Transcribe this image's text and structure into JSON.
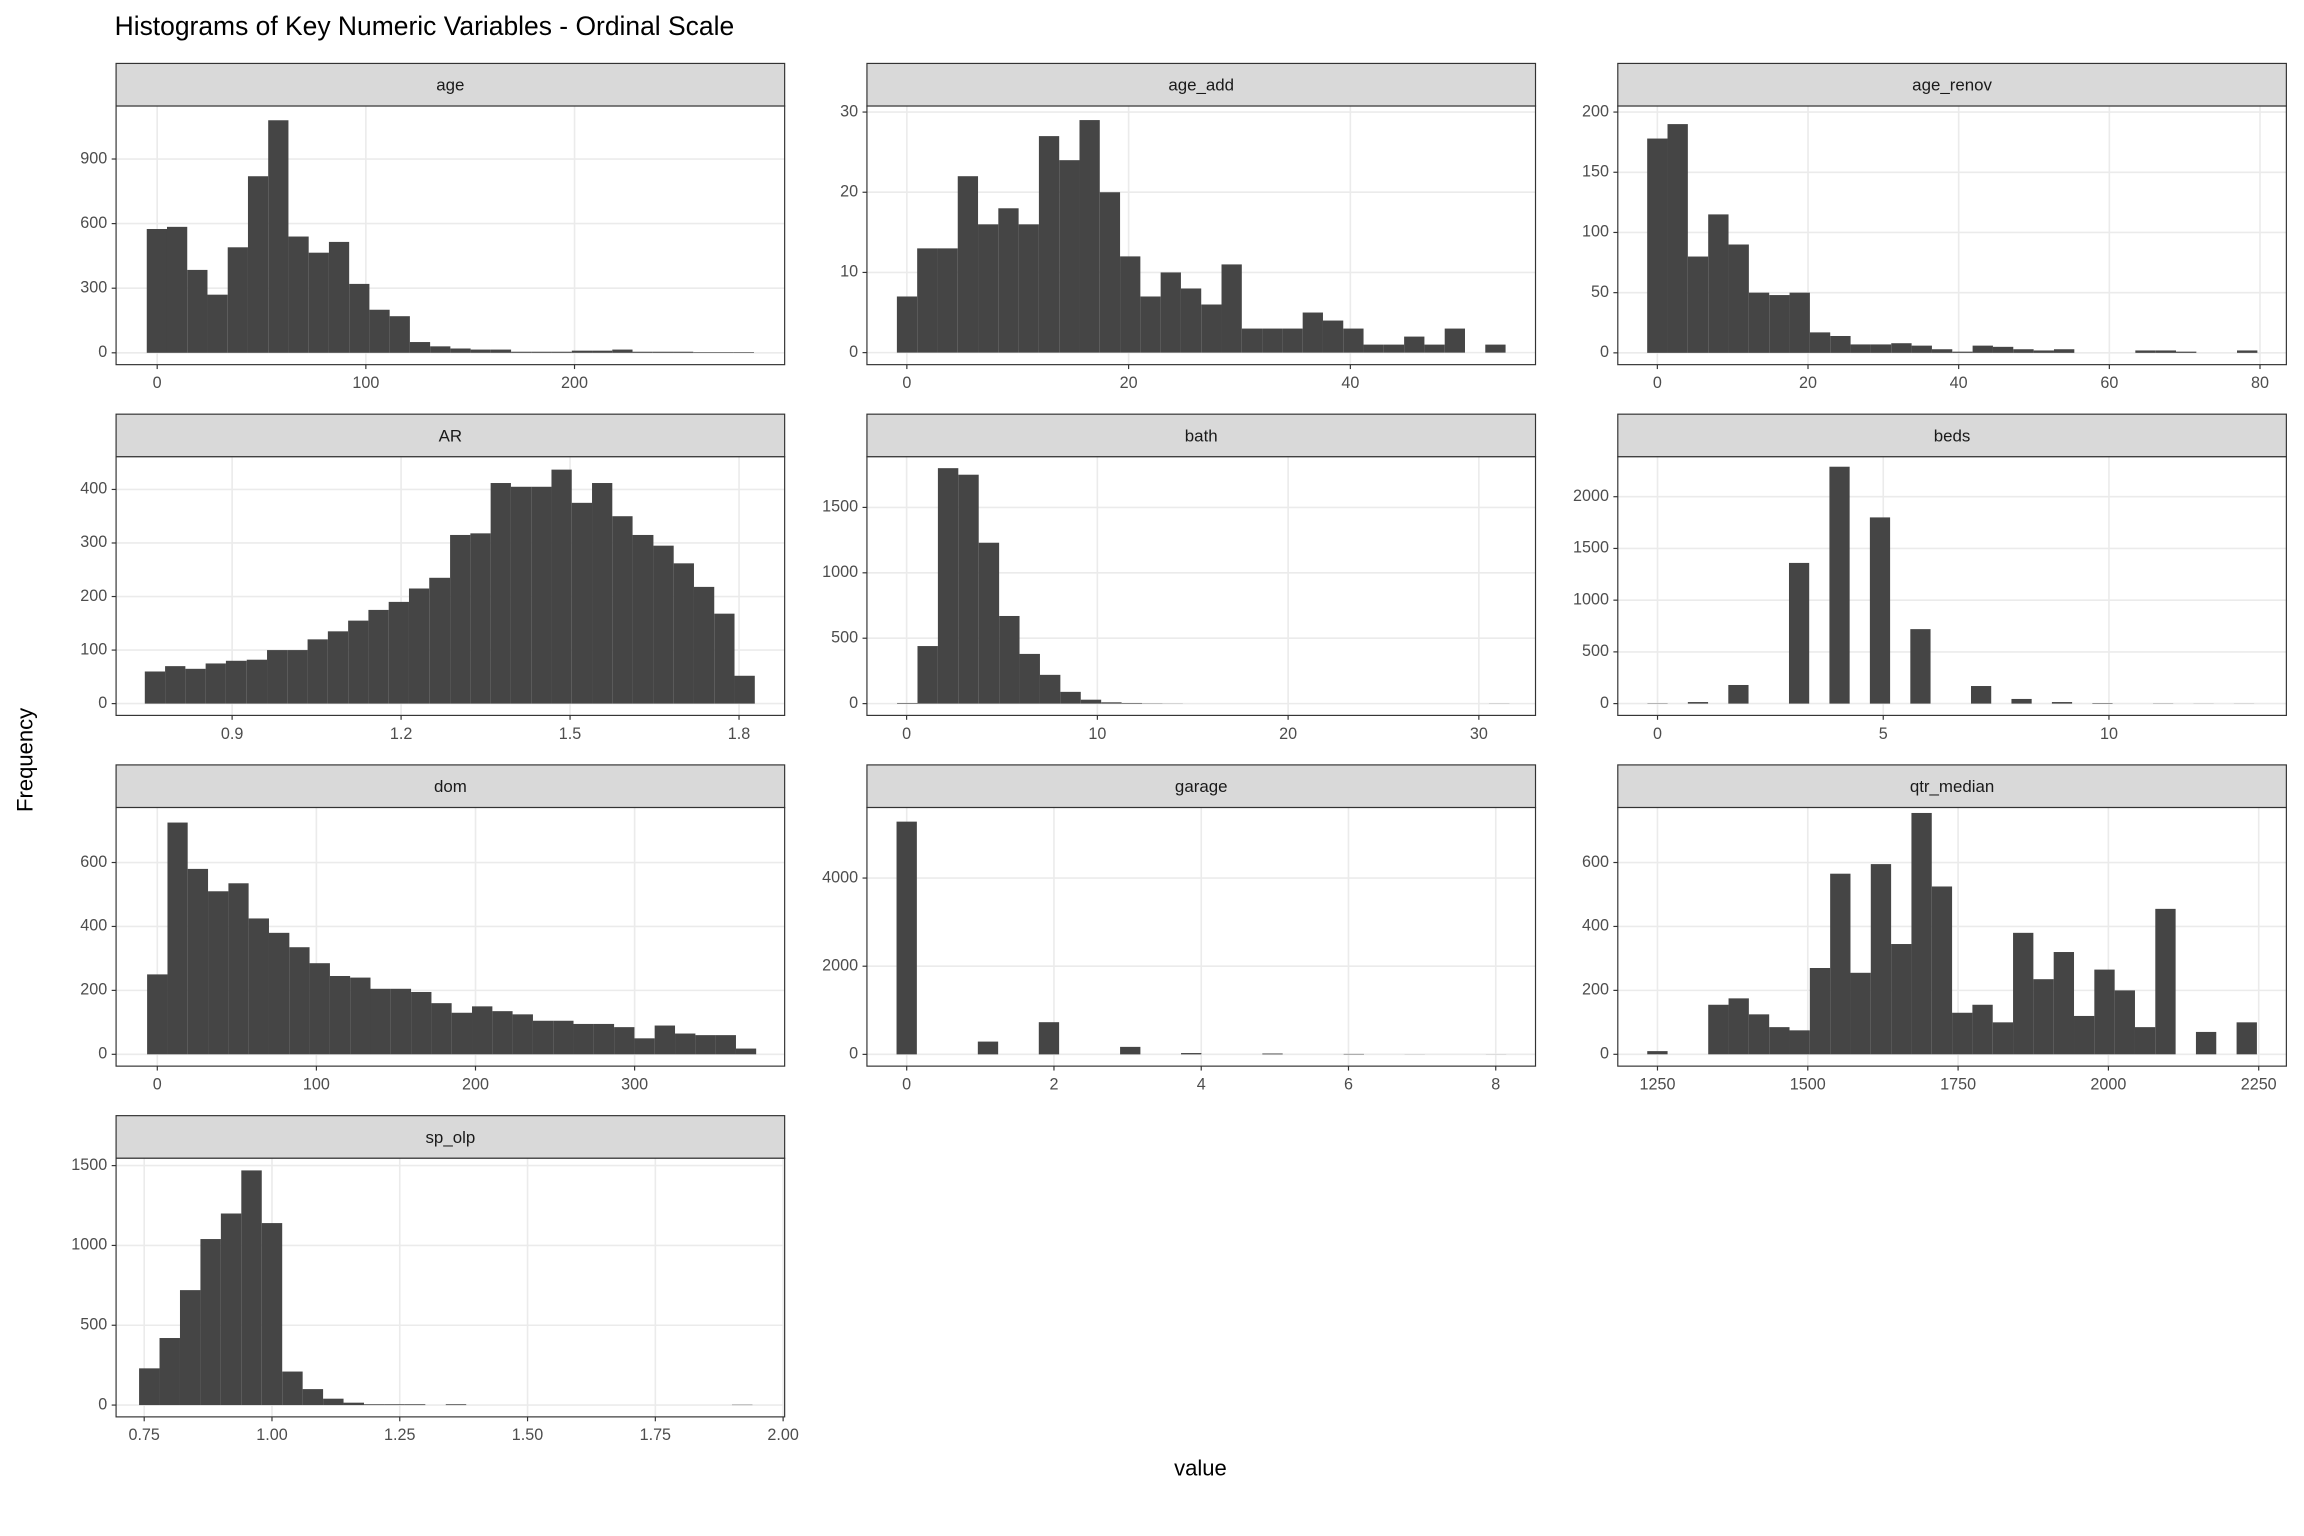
{
  "chart_data": {
    "type": "histogram",
    "title": "Histograms of Key Numeric Variables - Ordinal Scale",
    "x_label": "value",
    "y_label": "Frequency",
    "color": "#454545",
    "grid": true,
    "panels": [
      {
        "name": "age",
        "bins": [
          -5,
          4.7,
          14.4,
          24.1,
          33.8,
          43.5,
          53.2,
          62.9,
          72.6,
          82.3,
          92,
          101.7,
          111.4,
          121.1,
          130.8,
          140.5,
          150.2,
          159.9,
          169.6,
          179.3,
          189,
          198.7,
          208.4,
          218.1,
          227.8,
          237.5,
          247.2,
          256.9,
          266.6,
          276.3,
          286
        ],
        "counts": [
          575,
          585,
          385,
          270,
          490,
          820,
          1080,
          540,
          465,
          515,
          320,
          200,
          170,
          50,
          30,
          20,
          15,
          15,
          5,
          5,
          5,
          10,
          10,
          15,
          5,
          5,
          5,
          3,
          3,
          3
        ],
        "xlim": [
          -19.7,
          300.7
        ],
        "ylim": [
          -55,
          1146
        ],
        "xticks": [
          0,
          100,
          200
        ],
        "yticks": [
          0,
          300,
          600,
          900
        ]
      },
      {
        "name": "age_add",
        "bins": [
          -0.9,
          0.93,
          2.76,
          4.59,
          6.42,
          8.25,
          10.08,
          11.91,
          13.74,
          15.57,
          17.4,
          19.23,
          21.06,
          22.89,
          24.72,
          26.55,
          28.38,
          30.21,
          32.04,
          33.87,
          35.7,
          37.53,
          39.36,
          41.19,
          43.02,
          44.85,
          46.68,
          48.51,
          50.34,
          52.17,
          54
        ],
        "counts": [
          7,
          13,
          13,
          22,
          16,
          18,
          16,
          27,
          24,
          29,
          20,
          12,
          7,
          10,
          8,
          6,
          11,
          3,
          3,
          3,
          5,
          4,
          3,
          1,
          1,
          2,
          1,
          3,
          0,
          1
        ],
        "xlim": [
          -3.6,
          56.7
        ],
        "ylim": [
          -1.5,
          30.75
        ],
        "xticks": [
          0,
          20,
          40
        ],
        "yticks": [
          0,
          10,
          20,
          30
        ]
      },
      {
        "name": "age_renov",
        "bins": [
          -1.35,
          1.35,
          4.05,
          6.75,
          9.45,
          12.15,
          14.85,
          17.55,
          20.25,
          22.95,
          25.65,
          28.35,
          31.05,
          33.75,
          36.45,
          39.15,
          41.85,
          44.55,
          47.25,
          49.95,
          52.65,
          55.35,
          58.05,
          60.75,
          63.45,
          66.15,
          68.85,
          71.55,
          74.25,
          76.95,
          79.65
        ],
        "counts": [
          178,
          190,
          80,
          115,
          90,
          50,
          48,
          50,
          17,
          14,
          7,
          7,
          8,
          6,
          3,
          1,
          6,
          5,
          3,
          2,
          3,
          0,
          0,
          0,
          2,
          2,
          1,
          0,
          0,
          2
        ],
        "xlim": [
          -5.25,
          83.5
        ],
        "ylim": [
          -9.8,
          205
        ],
        "xticks": [
          0,
          20,
          40,
          60,
          80
        ],
        "yticks": [
          0,
          50,
          100,
          150,
          200
        ]
      },
      {
        "name": "AR",
        "bins": [
          0.745,
          0.781,
          0.817,
          0.853,
          0.889,
          0.926,
          0.962,
          0.998,
          1.034,
          1.07,
          1.106,
          1.142,
          1.178,
          1.214,
          1.25,
          1.287,
          1.323,
          1.359,
          1.395,
          1.431,
          1.467,
          1.503,
          1.539,
          1.575,
          1.611,
          1.648,
          1.684,
          1.72,
          1.756,
          1.792,
          1.828
        ],
        "counts": [
          60,
          70,
          65,
          75,
          80,
          82,
          100,
          100,
          120,
          135,
          155,
          175,
          190,
          215,
          235,
          315,
          318,
          412,
          405,
          405,
          437,
          375,
          412,
          350,
          315,
          295,
          262,
          218,
          168,
          52
        ],
        "xlim": [
          0.694,
          1.881
        ],
        "ylim": [
          -22,
          461
        ],
        "xticks": [
          0.9,
          1.2,
          1.5,
          1.8
        ],
        "yticks": [
          0,
          100,
          200,
          300,
          400
        ]
      },
      {
        "name": "bath",
        "bins": [
          -0.5,
          0.57,
          1.64,
          2.71,
          3.78,
          4.85,
          5.92,
          6.99,
          8.06,
          9.13,
          10.2,
          11.27,
          12.34,
          13.41,
          14.48,
          15.55,
          16.62,
          17.69,
          18.76,
          19.83,
          20.9,
          21.97,
          23.04,
          24.11,
          25.18,
          26.25,
          27.32,
          28.39,
          29.46,
          30.53,
          31.6
        ],
        "counts": [
          5,
          440,
          1800,
          1750,
          1230,
          670,
          380,
          220,
          90,
          30,
          10,
          5,
          2,
          1,
          0,
          0,
          0,
          0,
          0,
          0,
          0,
          0,
          0,
          0,
          0,
          0,
          0,
          0,
          0,
          1
        ],
        "xlim": [
          -2.08,
          32.97
        ],
        "ylim": [
          -90,
          1887
        ],
        "xticks": [
          0,
          10,
          20,
          30
        ],
        "yticks": [
          0,
          500,
          1000,
          1500
        ]
      },
      {
        "name": "beds",
        "bins": [
          -0.224,
          0.224,
          0.672,
          1.12,
          1.568,
          2.016,
          2.464,
          2.912,
          3.36,
          3.808,
          4.256,
          4.704,
          5.152,
          5.6,
          6.048,
          6.496,
          6.944,
          7.392,
          7.84,
          8.288,
          8.736,
          9.184,
          9.632,
          10.08,
          10.528,
          10.976,
          11.424,
          11.872,
          12.32,
          12.768,
          13.216
        ],
        "counts": [
          3,
          0,
          15,
          0,
          180,
          0,
          0,
          1360,
          0,
          2290,
          0,
          1800,
          0,
          720,
          0,
          0,
          170,
          0,
          45,
          0,
          15,
          0,
          5,
          0,
          0,
          2,
          0,
          1,
          0,
          1
        ],
        "xlim": [
          -0.88,
          13.93
        ],
        "ylim": [
          -114,
          2386
        ],
        "xticks": [
          0,
          5,
          10
        ],
        "yticks": [
          0,
          500,
          1000,
          1500,
          2000
        ]
      },
      {
        "name": "dom",
        "bins": [
          -6.4,
          6.4,
          19.1,
          31.9,
          44.7,
          57.4,
          70.2,
          83,
          95.7,
          108.5,
          121.2,
          134,
          146.8,
          159.5,
          172.3,
          185,
          197.8,
          210.6,
          223.3,
          236.1,
          248.8,
          261.6,
          274.4,
          287.1,
          299.9,
          312.6,
          325.4,
          338.2,
          350.9,
          363.7,
          376.4
        ],
        "counts": [
          250,
          725,
          580,
          510,
          535,
          425,
          380,
          335,
          285,
          245,
          240,
          205,
          205,
          195,
          160,
          130,
          150,
          135,
          125,
          105,
          105,
          95,
          95,
          85,
          50,
          90,
          65,
          60,
          60,
          18
        ],
        "xlim": [
          -25.9,
          394.3
        ],
        "ylim": [
          -37,
          772
        ],
        "xticks": [
          0,
          100,
          200,
          300
        ],
        "yticks": [
          0,
          200,
          400,
          600
        ]
      },
      {
        "name": "garage",
        "bins": [
          -0.138,
          0.138,
          0.414,
          0.69,
          0.966,
          1.242,
          1.518,
          1.794,
          2.07,
          2.346,
          2.622,
          2.898,
          3.174,
          3.45,
          3.726,
          4.002,
          4.278,
          4.554,
          4.83,
          5.106,
          5.382,
          5.658,
          5.934,
          6.21,
          6.486,
          6.762,
          7.038,
          7.314,
          7.59,
          7.866,
          8.142
        ],
        "counts": [
          5280,
          0,
          0,
          0,
          290,
          0,
          0,
          730,
          0,
          0,
          0,
          170,
          0,
          0,
          30,
          0,
          0,
          0,
          20,
          0,
          0,
          0,
          10,
          0,
          0,
          2,
          0,
          0,
          0,
          2
        ],
        "xlim": [
          -0.54,
          8.54
        ],
        "ylim": [
          -267,
          5600
        ],
        "xticks": [
          0,
          2,
          4,
          6,
          8
        ],
        "yticks": [
          0,
          2000,
          4000
        ]
      },
      {
        "name": "qtr_median",
        "bins": [
          1233,
          1266.8,
          1300.6,
          1334.4,
          1368.2,
          1402,
          1435.8,
          1469.6,
          1503.4,
          1537.2,
          1571,
          1604.8,
          1638.6,
          1672.4,
          1706.2,
          1740,
          1773.8,
          1807.6,
          1841.4,
          1875.2,
          1909,
          1942.8,
          1976.6,
          2010.4,
          2044.2,
          2078,
          2111.8,
          2145.6,
          2179.4,
          2213.2,
          2247
        ],
        "counts": [
          10,
          0,
          0,
          155,
          175,
          125,
          85,
          75,
          270,
          565,
          255,
          595,
          345,
          755,
          525,
          130,
          155,
          100,
          380,
          235,
          320,
          120,
          265,
          200,
          85,
          455,
          0,
          70,
          0,
          100
        ],
        "xlim": [
          1184,
          2296
        ],
        "ylim": [
          -37,
          772
        ],
        "xticks": [
          1250,
          1500,
          1750,
          2000,
          2250
        ],
        "yticks": [
          0,
          200,
          400,
          600
        ]
      },
      {
        "name": "sp_olp",
        "bins": [
          0.74,
          0.78,
          0.82,
          0.86,
          0.9,
          0.94,
          0.98,
          1.02,
          1.06,
          1.1,
          1.14,
          1.18,
          1.22,
          1.26,
          1.3,
          1.34,
          1.38,
          1.42,
          1.46,
          1.5,
          1.54,
          1.58,
          1.62,
          1.66,
          1.7,
          1.74,
          1.78,
          1.82,
          1.86,
          1.9,
          1.94
        ],
        "counts": [
          230,
          420,
          720,
          1040,
          1200,
          1470,
          1140,
          210,
          100,
          40,
          15,
          5,
          5,
          5,
          0,
          5,
          0,
          0,
          0,
          0,
          0,
          0,
          0,
          0,
          0,
          0,
          0,
          0,
          0,
          2
        ],
        "xlim": [
          0.695,
          2.003
        ],
        "ylim": [
          -74,
          1546
        ],
        "xticks": [
          {
            "value": 0.75,
            "label": "0.75"
          },
          {
            "value": 1,
            "label": "1.00"
          },
          {
            "value": 1.25,
            "label": "1.25"
          },
          {
            "value": 1.5,
            "label": "1.50"
          },
          {
            "value": 1.75,
            "label": "1.75"
          },
          {
            "value": 2,
            "label": "2.00"
          }
        ],
        "yticks": [
          0,
          500,
          1000,
          1500
        ]
      }
    ]
  }
}
